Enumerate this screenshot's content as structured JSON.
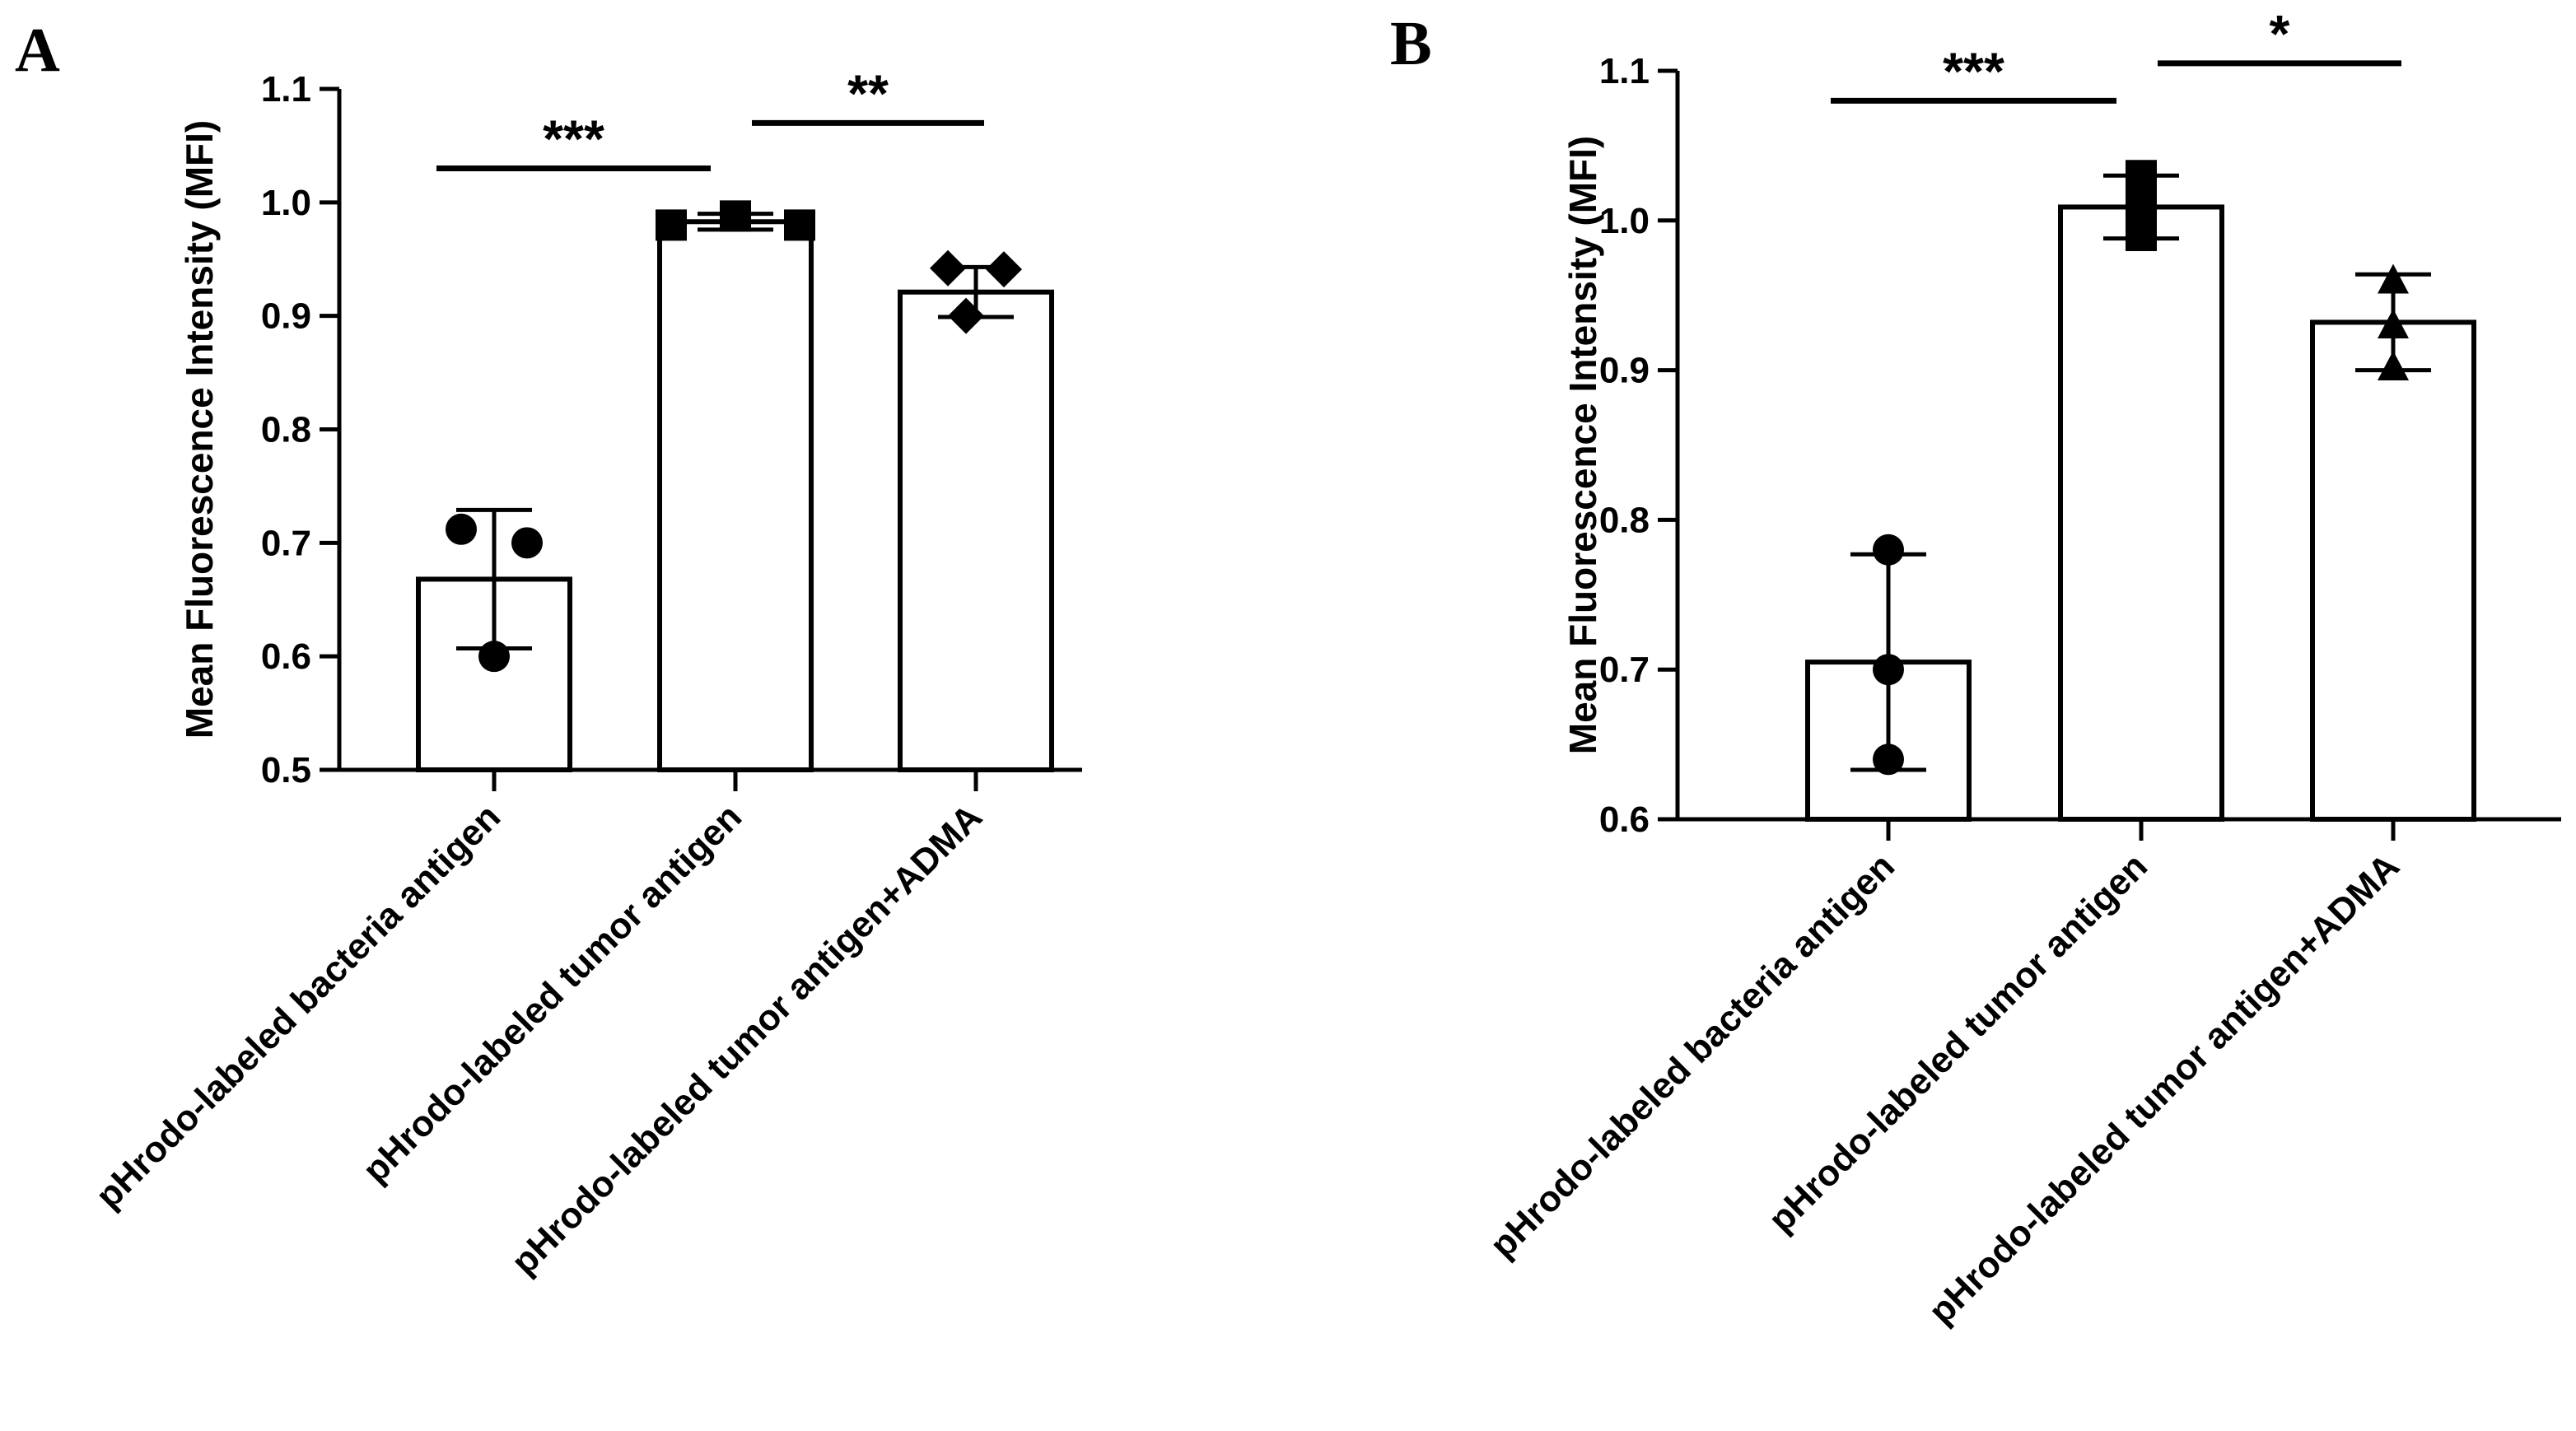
{
  "figure": {
    "panels": [
      "A",
      "B"
    ]
  },
  "chart_data": [
    {
      "panel": "A",
      "type": "bar",
      "title": "",
      "xlabel": "",
      "ylabel": "Mean Fluorescence Intensity (MFI)",
      "ylim": [
        0.5,
        1.1
      ],
      "yticks": [
        "0.5",
        "0.6",
        "0.7",
        "0.8",
        "0.9",
        "1.0",
        "1.1"
      ],
      "grid": false,
      "categories": [
        "pHrodo-labeled bacteria antigen",
        "pHrodo-labeled tumor antigen",
        "pHrodo-labeled tumor antigen+ADMA"
      ],
      "values": [
        0.668,
        0.983,
        0.921
      ],
      "error": [
        0.061,
        0.007,
        0.022
      ],
      "points": [
        [
          0.712,
          0.7,
          0.6
        ],
        [
          0.98,
          0.988,
          0.98
        ],
        [
          0.942,
          0.941,
          0.9
        ]
      ],
      "markers": [
        "circle",
        "square",
        "diamond"
      ],
      "significance": [
        {
          "from": 0,
          "to": 1,
          "label": "***",
          "y": 1.03
        },
        {
          "from": 1,
          "to": 2,
          "label": "**",
          "y": 1.07
        }
      ]
    },
    {
      "panel": "B",
      "type": "bar",
      "title": "",
      "xlabel": "",
      "ylabel": "Mean Fluorescence Intensity (MFI)",
      "ylim": [
        0.6,
        1.1
      ],
      "yticks": [
        "0.6",
        "0.7",
        "0.8",
        "0.9",
        "1.0",
        "1.1"
      ],
      "grid": false,
      "categories": [
        "pHrodo-labeled bacteria antigen",
        "pHrodo-labeled tumor antigen",
        "pHrodo-labeled tumor antigen+ADMA"
      ],
      "values": [
        0.705,
        1.009,
        0.932
      ],
      "error": [
        0.072,
        0.021,
        0.032
      ],
      "points": [
        [
          0.78,
          0.7,
          0.64
        ],
        [
          1.03,
          1.01,
          0.99
        ],
        [
          0.96,
          0.93,
          0.902
        ]
      ],
      "markers": [
        "circle",
        "square",
        "triangle"
      ],
      "significance": [
        {
          "from": 0,
          "to": 1,
          "label": "***",
          "y": 1.08
        },
        {
          "from": 1,
          "to": 2,
          "label": "*",
          "y": 1.105
        }
      ]
    }
  ]
}
